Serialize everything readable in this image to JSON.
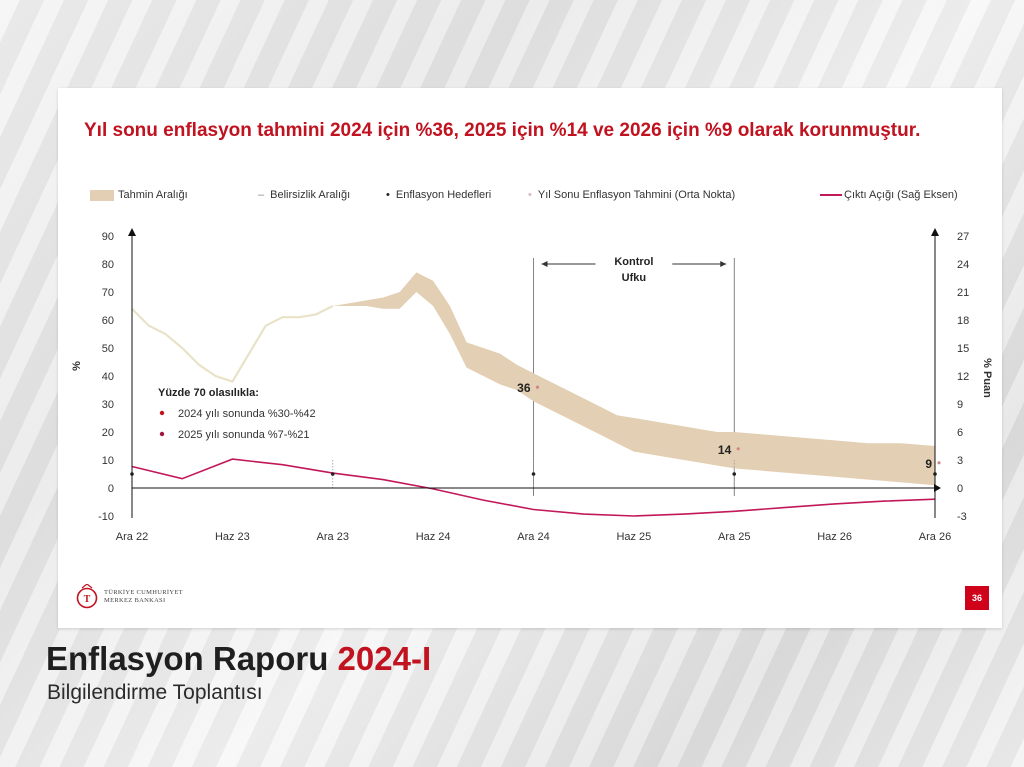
{
  "slide": {
    "headline": "Yıl sonu enflasyon tahmini 2024 için %36, 2025 için %14 ve 2026 için %9 olarak korunmuştur.",
    "page_number": "36",
    "logo_line1": "TÜRKİYE CUMHURİYET",
    "logo_line2": "MERKEZ BANKASI"
  },
  "footer": {
    "title_main": "Enflasyon Raporu",
    "title_year": "2024-I",
    "subtitle": "Bilgilendirme Toplantısı"
  },
  "colors": {
    "headline": "#c1121f",
    "band": "#e3cfb3",
    "inflation_line": "#e8e3c8",
    "output_gap": "#c2185b",
    "badge": "#d0021b"
  },
  "chart_data": {
    "type": "line",
    "legend": {
      "band": "Tahmin Aralığı",
      "uncertainty": "Belirsizlik Aralığı",
      "targets": "Enflasyon Hedefleri",
      "midpoint": "Yıl Sonu Enflasyon Tahmini (Orta Nokta)",
      "output_gap": "Çıktı Açığı (Sağ Eksen)"
    },
    "x_ticks": [
      "Ara 22",
      "Haz 23",
      "Ara 23",
      "Haz 24",
      "Ara 24",
      "Haz 25",
      "Ara 25",
      "Haz 26",
      "Ara 26"
    ],
    "y_left": {
      "label": "%",
      "min": -10,
      "max": 90,
      "ticks": [
        90,
        80,
        70,
        60,
        50,
        40,
        30,
        20,
        10,
        0,
        -10
      ]
    },
    "y_right": {
      "label": "% Puan",
      "min": -3,
      "max": 27,
      "ticks": [
        27,
        24,
        21,
        18,
        15,
        12,
        9,
        6,
        3,
        0,
        -3
      ]
    },
    "control_horizon": {
      "label_line1": "Kontrol",
      "label_line2": "Ufku",
      "start": 24,
      "end": 36
    },
    "inflation_actual": {
      "name": "",
      "points": [
        [
          0,
          64
        ],
        [
          1,
          58
        ],
        [
          2,
          55
        ],
        [
          3,
          50
        ],
        [
          4,
          44
        ],
        [
          5,
          40
        ],
        [
          6,
          38
        ],
        [
          7,
          48
        ],
        [
          8,
          58
        ],
        [
          9,
          61
        ],
        [
          10,
          61
        ],
        [
          11,
          62
        ],
        [
          12,
          65
        ]
      ]
    },
    "forecast_band": {
      "name": "Tahmin Aralığı",
      "x": [
        12,
        13,
        14,
        15,
        16,
        17,
        18,
        19,
        20,
        21,
        22,
        23,
        24,
        25,
        26,
        27,
        28,
        29,
        30,
        31,
        32,
        33,
        34,
        35,
        36,
        38,
        40,
        42,
        44,
        46,
        48
      ],
      "lower": [
        65,
        65,
        65,
        64,
        64,
        70,
        65,
        55,
        43,
        40,
        37,
        35,
        31,
        28,
        25,
        22,
        19,
        16,
        13,
        12,
        11,
        10,
        9,
        8,
        7,
        6,
        5,
        4,
        3,
        2,
        1
      ],
      "upper": [
        65,
        66,
        67,
        68,
        70,
        77,
        74,
        65,
        52,
        50,
        48,
        44,
        41,
        38,
        35,
        32,
        29,
        26,
        25,
        24,
        23,
        22,
        21,
        20,
        20,
        19,
        18,
        17,
        16,
        16,
        15
      ]
    },
    "midpoints": [
      {
        "x": 24,
        "y": 36,
        "label": "36"
      },
      {
        "x": 36,
        "y": 14,
        "label": "14"
      },
      {
        "x": 48,
        "y": 9,
        "label": "9"
      }
    ],
    "targets": [
      {
        "x": 0,
        "y": 5
      },
      {
        "x": 12,
        "y": 5
      },
      {
        "x": 24,
        "y": 5
      },
      {
        "x": 36,
        "y": 5
      },
      {
        "x": 48,
        "y": 5
      }
    ],
    "output_gap": {
      "name": "Çıktı Açığı (Sağ Eksen)",
      "points": [
        [
          0,
          2.3
        ],
        [
          3,
          1
        ],
        [
          6,
          3.1
        ],
        [
          9,
          2.5
        ],
        [
          12,
          1.6
        ],
        [
          15,
          0.9
        ],
        [
          18,
          -0.1
        ],
        [
          21,
          -1.3
        ],
        [
          24,
          -2.3
        ],
        [
          27,
          -2.8
        ],
        [
          30,
          -3
        ],
        [
          33,
          -2.8
        ],
        [
          36,
          -2.5
        ],
        [
          39,
          -2.1
        ],
        [
          42,
          -1.7
        ],
        [
          45,
          -1.4
        ],
        [
          48,
          -1.2
        ]
      ]
    },
    "annotation": {
      "title": "Yüzde 70 olasılıkla:",
      "items": [
        "2024 yılı sonunda %30-%42",
        "2025 yılı sonunda %7-%21"
      ]
    }
  }
}
